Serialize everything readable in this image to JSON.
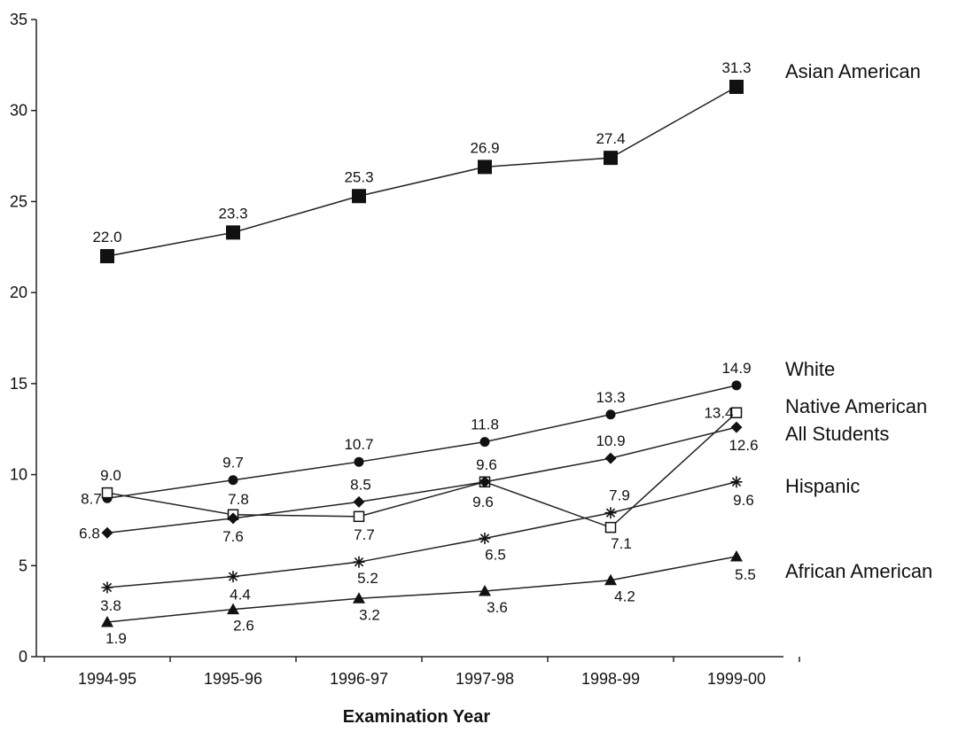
{
  "chart_data": {
    "type": "line",
    "title": "",
    "xlabel": "Examination Year",
    "ylabel": "",
    "categories": [
      "1994-95",
      "1995-96",
      "1996-97",
      "1997-98",
      "1998-99",
      "1999-00"
    ],
    "ylim": [
      0,
      35
    ],
    "yticks": [
      0,
      5,
      10,
      15,
      20,
      25,
      30,
      35
    ],
    "grid": false,
    "legend": "direct labels at right end of each series",
    "series": [
      {
        "name": "Asian American",
        "marker": "filled-square",
        "values": [
          22.0,
          23.3,
          25.3,
          26.9,
          27.4,
          31.3
        ],
        "labels": [
          "22.0",
          "23.3",
          "25.3",
          "26.9",
          "27.4",
          "31.3"
        ]
      },
      {
        "name": "White",
        "marker": "filled-circle",
        "values": [
          8.7,
          9.7,
          10.7,
          11.8,
          13.3,
          14.9
        ],
        "labels": [
          "8.7",
          "9.7",
          "10.7",
          "11.8",
          "13.3",
          "14.9"
        ]
      },
      {
        "name": "Native American",
        "marker": "open-square",
        "values": [
          9.0,
          7.8,
          7.7,
          9.6,
          7.1,
          13.4
        ],
        "labels": [
          "9.0",
          "7.8",
          "7.7",
          "9.6",
          "7.1",
          "13.4"
        ]
      },
      {
        "name": "All Students",
        "marker": "filled-diamond",
        "values": [
          6.8,
          7.6,
          8.5,
          9.6,
          10.9,
          12.6
        ],
        "labels": [
          "6.8",
          "7.6",
          "8.5",
          "9.6",
          "10.9",
          "12.6"
        ]
      },
      {
        "name": "Hispanic",
        "marker": "asterisk",
        "values": [
          3.8,
          4.4,
          5.2,
          6.5,
          7.9,
          9.6
        ],
        "labels": [
          "3.8",
          "4.4",
          "5.2",
          "6.5",
          "7.9",
          "9.6"
        ]
      },
      {
        "name": "African American",
        "marker": "filled-triangle",
        "values": [
          1.9,
          2.6,
          3.2,
          3.6,
          4.2,
          5.5
        ],
        "labels": [
          "1.9",
          "2.6",
          "3.2",
          "3.6",
          "4.2",
          "5.5"
        ]
      }
    ]
  }
}
